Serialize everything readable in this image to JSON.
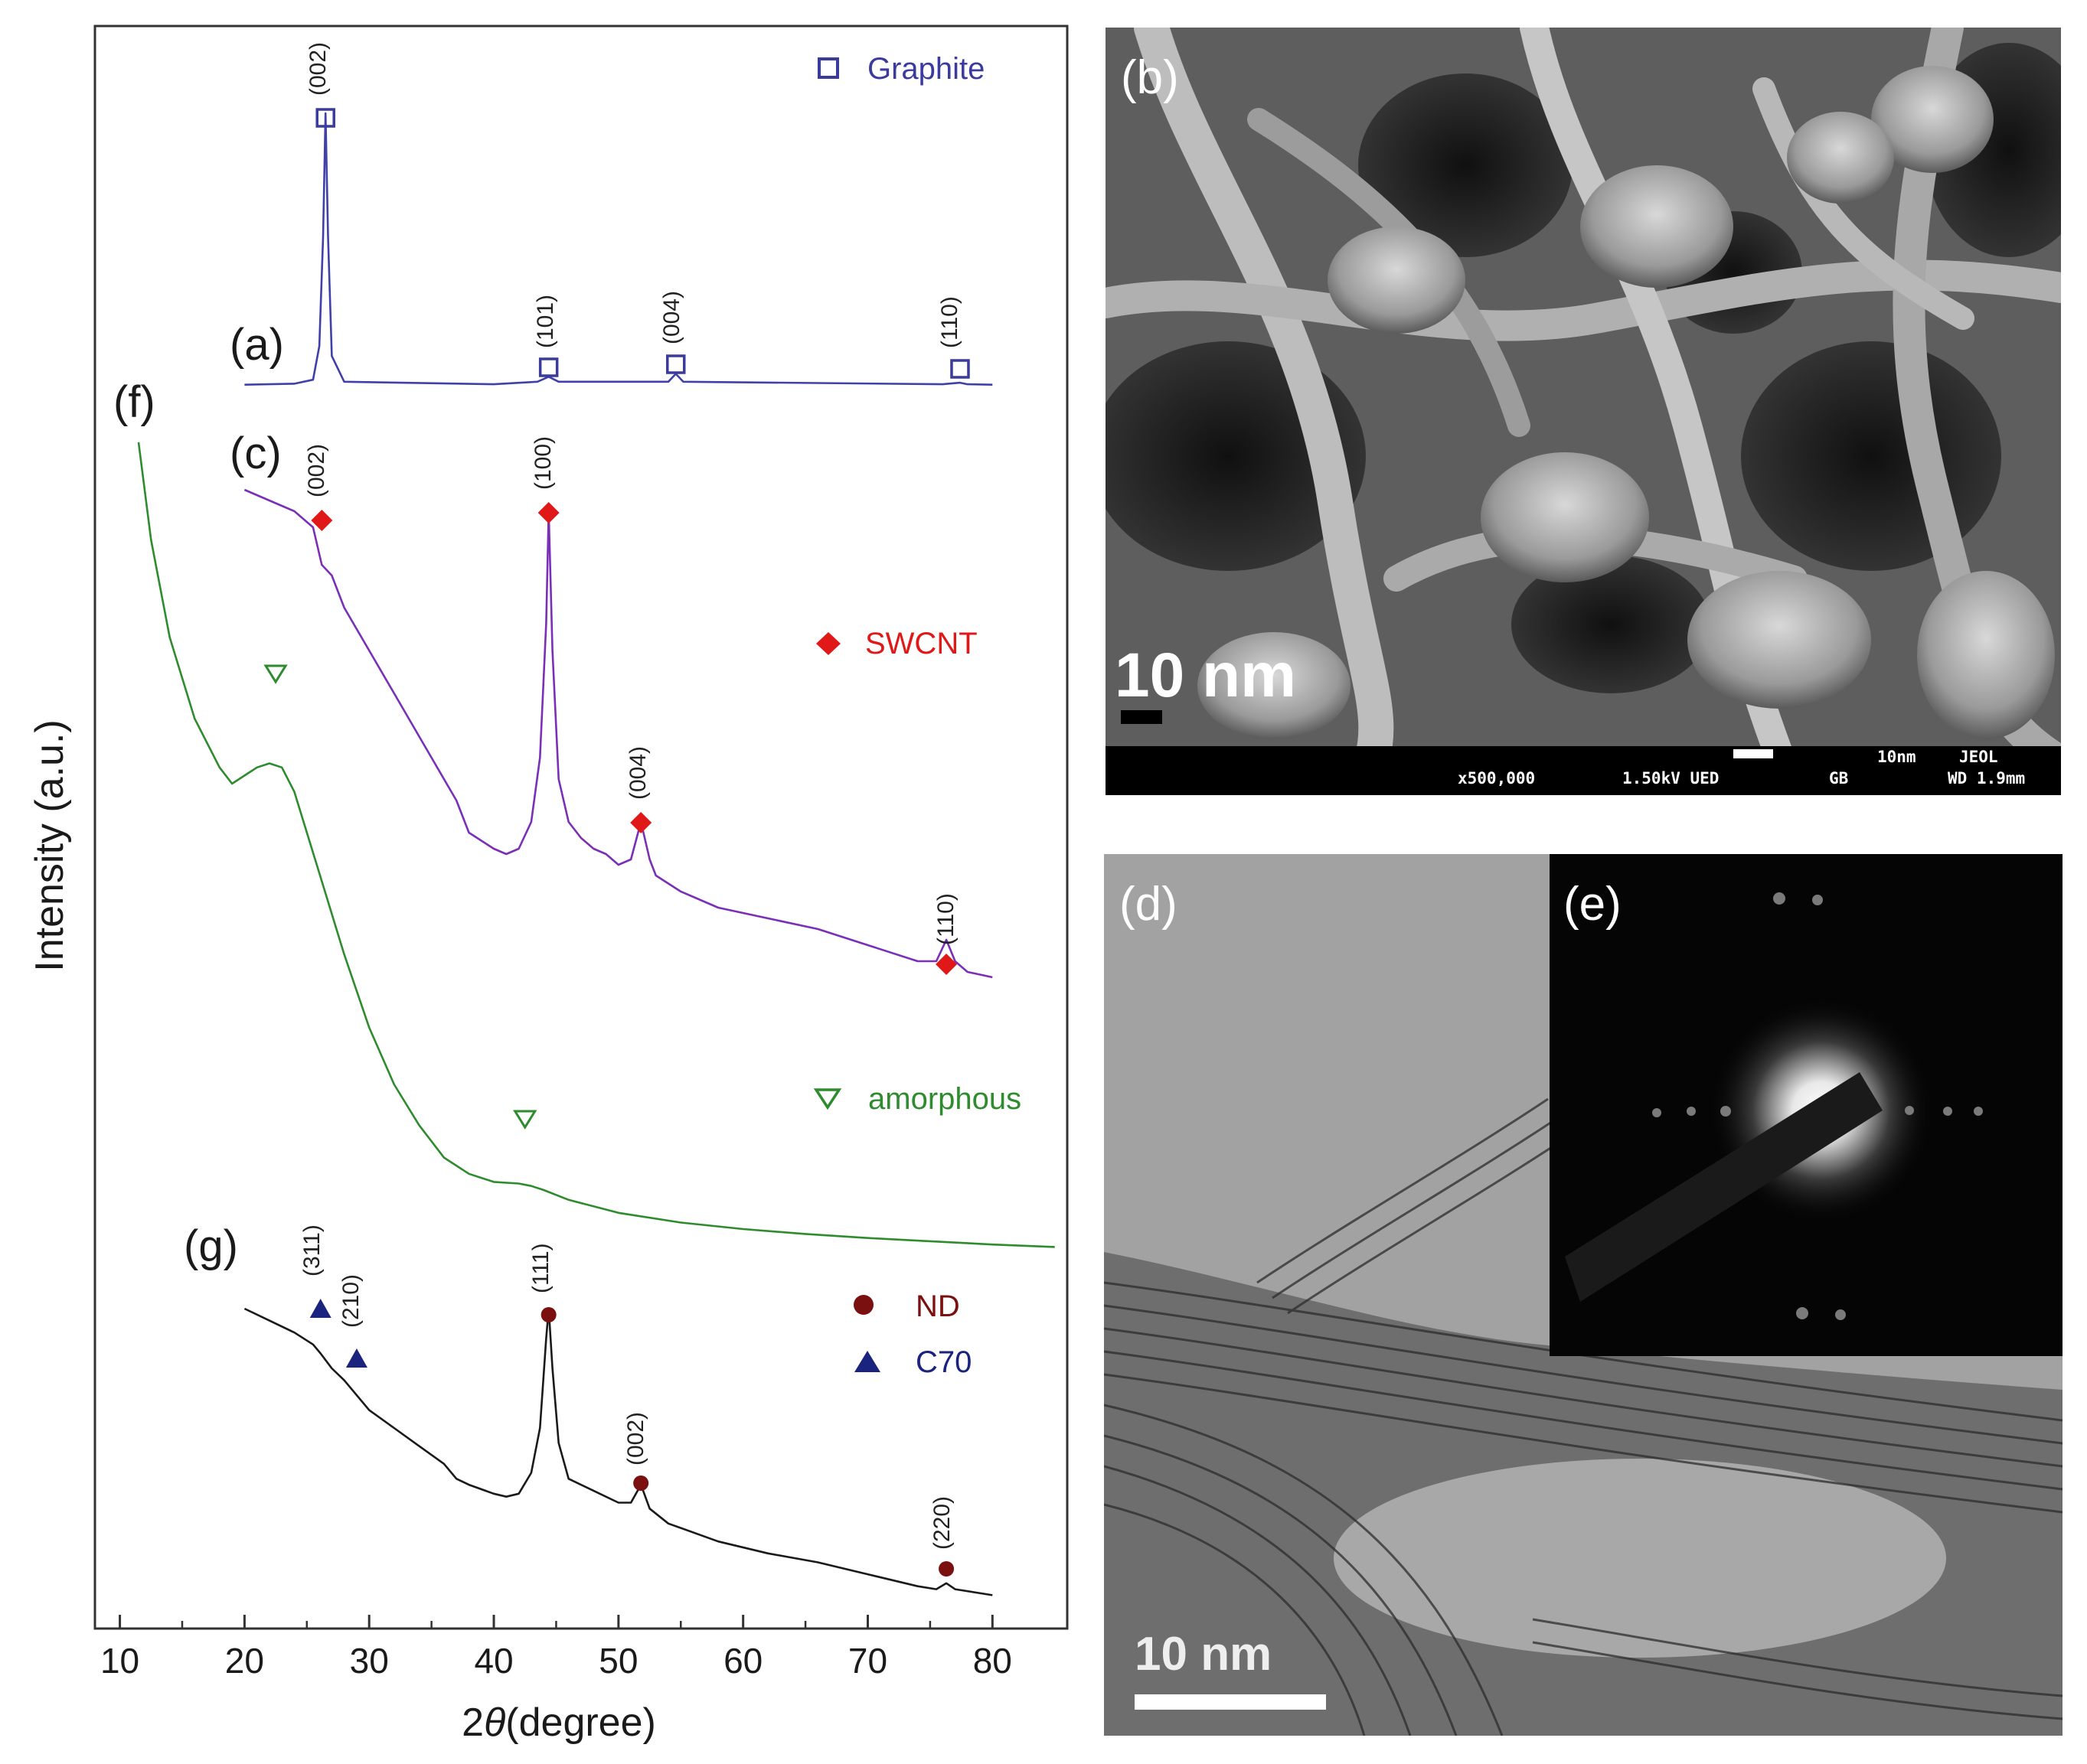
{
  "chart_data": {
    "type": "line",
    "xlabel_prefix": "2",
    "xlabel_symbol": "θ",
    "xlabel_suffix": "(degree)",
    "ylabel": "Intensity (a.u.)",
    "xlim": [
      8,
      86
    ],
    "x_ticks": [
      10,
      20,
      30,
      40,
      50,
      60,
      70,
      80
    ],
    "y_ticks_shown": false,
    "y_scale": "arbitrary units, curves vertically offset",
    "series": [
      {
        "panel": "(a)",
        "color": "#4040a8",
        "x": [
          20,
          24,
          25.5,
          26.0,
          26.3,
          26.5,
          26.7,
          27.0,
          28,
          40,
          43.5,
          44.4,
          45.2,
          54,
          54.6,
          55.2,
          76,
          77.4,
          78,
          80
        ],
        "y": [
          0.2,
          0.4,
          1.2,
          8,
          30,
          55,
          30,
          6,
          0.8,
          0.3,
          0.8,
          1.8,
          0.8,
          0.8,
          2.4,
          0.8,
          0.3,
          0.6,
          0.3,
          0.2
        ]
      },
      {
        "panel": "(c)",
        "color": "#7a2fb8",
        "x": [
          20,
          22,
          24,
          25.5,
          26.2,
          27,
          28,
          29,
          30,
          32,
          35,
          37,
          38,
          40,
          41,
          42,
          43,
          43.7,
          44.2,
          44.4,
          44.7,
          45.2,
          46,
          47,
          48,
          49,
          50,
          51,
          51.8,
          52.5,
          53,
          55,
          58,
          62,
          66,
          70,
          74,
          75.5,
          76.3,
          77,
          78,
          80
        ],
        "y": [
          100,
          98,
          96,
          93,
          86,
          84,
          78,
          74,
          70,
          62,
          50,
          42,
          36,
          33,
          32,
          33,
          38,
          50,
          75,
          96,
          70,
          46,
          38,
          35,
          33,
          32,
          30,
          31,
          38,
          31,
          28,
          25,
          22,
          20,
          18,
          15,
          12,
          12,
          16,
          12,
          10,
          9
        ]
      },
      {
        "panel": "(f)",
        "color": "#2e8b2e",
        "x": [
          11.5,
          12.5,
          14,
          16,
          18,
          19,
          20,
          21,
          22,
          23,
          24,
          26,
          28,
          30,
          32,
          34,
          36,
          38,
          40,
          42,
          43,
          44,
          46,
          50,
          55,
          60,
          65,
          70,
          75,
          80,
          85
        ],
        "y": [
          100,
          88,
          76,
          66,
          60,
          58,
          59,
          60,
          60.5,
          60,
          57,
          47,
          37,
          28,
          21,
          16,
          12,
          10,
          9,
          8.8,
          8.5,
          8,
          6.8,
          5.2,
          4.0,
          3.2,
          2.6,
          2.1,
          1.7,
          1.3,
          1.0
        ]
      },
      {
        "panel": "(g)",
        "color": "#1a1a1a",
        "x": [
          20,
          22,
          24,
          25.5,
          26.1,
          27,
          28,
          29,
          30,
          32,
          34,
          36,
          37,
          38,
          40,
          41,
          42,
          43,
          43.7,
          44.2,
          44.4,
          44.7,
          45.2,
          46,
          48,
          50,
          51,
          51.8,
          52.5,
          54,
          58,
          62,
          66,
          70,
          74,
          75.5,
          76.3,
          77,
          80
        ],
        "y": [
          100,
          96,
          92,
          88,
          85,
          80,
          76,
          71,
          66,
          60,
          54,
          48,
          43,
          41,
          38,
          37,
          38,
          45,
          60,
          90,
          100,
          80,
          55,
          43,
          39,
          35,
          35,
          41,
          33,
          28,
          22,
          18,
          15,
          11,
          7,
          6,
          8,
          6,
          4
        ]
      }
    ],
    "panel_labels": [
      "(a)",
      "(c)",
      "(f)",
      "(g)"
    ],
    "peak_labels": {
      "a": [
        "(002)",
        "(101)",
        "(004)",
        "(110)"
      ],
      "c": [
        "(002)",
        "(100)",
        "(004)",
        "(110)"
      ],
      "f_markers_at": [
        22.5,
        42.5
      ],
      "g_c70": [
        "(311)",
        "(210)"
      ],
      "g_nd": [
        "(111)",
        "(002)",
        "(220)"
      ]
    },
    "legend": [
      {
        "label": "Graphite",
        "marker": "open-square",
        "color": "#3b3b9e"
      },
      {
        "label": "SWCNT",
        "marker": "filled-diamond",
        "color": "#e01818"
      },
      {
        "label": "amorphous",
        "marker": "open-triangle-down",
        "color": "#2e8b2e"
      },
      {
        "label": "ND",
        "marker": "filled-circle",
        "color": "#7a1010"
      },
      {
        "label": "C70",
        "marker": "filled-triangle-up",
        "color": "#1a237e"
      }
    ]
  },
  "micrographs": {
    "sem": {
      "panel_label": "(b)",
      "scalebar_label": "10 nm",
      "info_scale": "10nm",
      "info_brand": "JEOL",
      "info_magnification": "x500,000",
      "info_voltage": "1.50kV UED",
      "info_mode": "GB",
      "info_wd": "WD 1.9mm"
    },
    "tem": {
      "panel_label": "(d)",
      "scalebar_label": "10 nm"
    },
    "diffraction": {
      "panel_label": "(e)"
    }
  },
  "colors": {
    "axis": "#333333",
    "graphite": "#3b3b9e",
    "swcnt": "#e01818",
    "amorphous": "#2e8b2e",
    "nd": "#7a1010",
    "c70": "#1a237e"
  }
}
